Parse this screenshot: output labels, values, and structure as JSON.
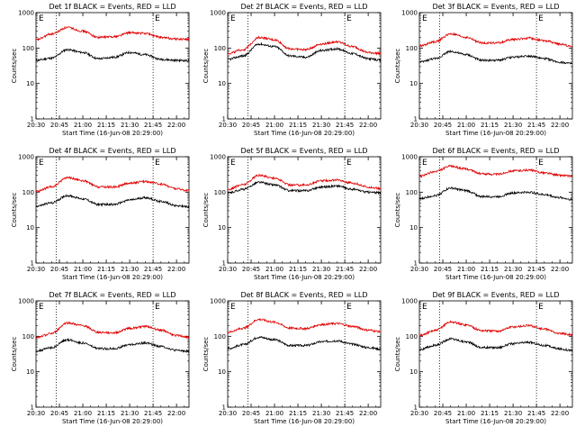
{
  "chart_data": [
    {
      "type": "line",
      "title": "Det 1f BLACK = Events, RED = LLD",
      "xlabel": "Start Time (16-Jun-08 20:29:00)",
      "ylabel": "Counts/sec",
      "yscale": "log",
      "ylim": [
        1,
        1000
      ],
      "xlim": [
        "20:30",
        "22:08"
      ],
      "xticks": [
        "20:30",
        "20:45",
        "21:00",
        "21:15",
        "21:30",
        "21:45",
        "22:00"
      ],
      "yticks": [
        "1",
        "10",
        "100",
        "1000"
      ],
      "markers": [
        "E",
        "E"
      ],
      "vlines": [
        "20:43",
        "21:45"
      ],
      "series": [
        {
          "name": "BLACK",
          "color": "#000000",
          "x": [
            "20:30",
            "20:40",
            "20:50",
            "21:00",
            "21:10",
            "21:20",
            "21:30",
            "21:40",
            "21:50",
            "22:00",
            "22:08"
          ],
          "values": [
            45,
            52,
            90,
            75,
            50,
            55,
            75,
            65,
            48,
            45,
            44
          ]
        },
        {
          "name": "RED",
          "color": "#e00000",
          "x": [
            "20:30",
            "20:40",
            "20:50",
            "21:00",
            "21:10",
            "21:20",
            "21:30",
            "21:40",
            "21:50",
            "22:00",
            "22:08"
          ],
          "values": [
            170,
            250,
            380,
            300,
            200,
            210,
            270,
            260,
            200,
            180,
            175
          ]
        }
      ]
    },
    {
      "type": "line",
      "title": "Det 2f BLACK = Events, RED = LLD",
      "xlabel": "Start Time (16-Jun-08 20:29:00)",
      "ylabel": "Counts/sec",
      "yscale": "log",
      "ylim": [
        1,
        1000
      ],
      "xlim": [
        "20:30",
        "22:08"
      ],
      "xticks": [
        "20:30",
        "20:45",
        "21:00",
        "21:15",
        "21:30",
        "21:45",
        "22:00"
      ],
      "yticks": [
        "1",
        "10",
        "100",
        "1000"
      ],
      "markers": [
        "E",
        "E"
      ],
      "vlines": [
        "20:43",
        "21:45"
      ],
      "series": [
        {
          "name": "BLACK",
          "color": "#000000",
          "x": [
            "20:30",
            "20:40",
            "20:50",
            "21:00",
            "21:10",
            "21:20",
            "21:30",
            "21:40",
            "21:50",
            "22:00",
            "22:08"
          ],
          "values": [
            48,
            60,
            130,
            110,
            60,
            55,
            85,
            95,
            70,
            50,
            45
          ]
        },
        {
          "name": "RED",
          "color": "#e00000",
          "x": [
            "20:30",
            "20:40",
            "20:50",
            "21:00",
            "21:10",
            "21:20",
            "21:30",
            "21:40",
            "21:50",
            "22:00",
            "22:08"
          ],
          "values": [
            70,
            90,
            200,
            170,
            95,
            90,
            130,
            150,
            110,
            75,
            70
          ]
        }
      ]
    },
    {
      "type": "line",
      "title": "Det 3f BLACK = Events, RED = LLD",
      "xlabel": "Start Time (16-Jun-08 20:29:00)",
      "ylabel": "Counts/sec",
      "yscale": "log",
      "ylim": [
        1,
        1000
      ],
      "xlim": [
        "20:30",
        "22:08"
      ],
      "xticks": [
        "20:30",
        "20:45",
        "21:00",
        "21:15",
        "21:30",
        "21:45",
        "22:00"
      ],
      "yticks": [
        "1",
        "10",
        "100",
        "1000"
      ],
      "markers": [
        "E",
        "E"
      ],
      "vlines": [
        "20:43",
        "21:45"
      ],
      "series": [
        {
          "name": "BLACK",
          "color": "#000000",
          "x": [
            "20:30",
            "20:40",
            "20:50",
            "21:00",
            "21:10",
            "21:20",
            "21:30",
            "21:40",
            "21:50",
            "22:00",
            "22:08"
          ],
          "values": [
            40,
            50,
            80,
            65,
            45,
            45,
            55,
            60,
            50,
            40,
            36
          ]
        },
        {
          "name": "RED",
          "color": "#e00000",
          "x": [
            "20:30",
            "20:40",
            "20:50",
            "21:00",
            "21:10",
            "21:20",
            "21:30",
            "21:40",
            "21:50",
            "22:00",
            "22:08"
          ],
          "values": [
            115,
            150,
            250,
            200,
            140,
            140,
            175,
            190,
            160,
            130,
            110
          ]
        }
      ]
    },
    {
      "type": "line",
      "title": "Det 4f BLACK = Events, RED = LLD",
      "xlabel": "Start Time (16-Jun-08 20:29:00)",
      "ylabel": "Counts/sec",
      "yscale": "log",
      "ylim": [
        1,
        1000
      ],
      "xlim": [
        "20:30",
        "22:08"
      ],
      "xticks": [
        "20:30",
        "20:45",
        "21:00",
        "21:15",
        "21:30",
        "21:45",
        "22:00"
      ],
      "yticks": [
        "1",
        "10",
        "100",
        "1000"
      ],
      "markers": [
        "E",
        "E"
      ],
      "vlines": [
        "20:43",
        "21:45"
      ],
      "series": [
        {
          "name": "BLACK",
          "color": "#000000",
          "x": [
            "20:30",
            "20:40",
            "20:50",
            "21:00",
            "21:10",
            "21:20",
            "21:30",
            "21:40",
            "21:50",
            "22:00",
            "22:08"
          ],
          "values": [
            40,
            50,
            80,
            65,
            45,
            45,
            60,
            70,
            55,
            42,
            38
          ]
        },
        {
          "name": "RED",
          "color": "#e00000",
          "x": [
            "20:30",
            "20:40",
            "20:50",
            "21:00",
            "21:10",
            "21:20",
            "21:30",
            "21:40",
            "21:50",
            "22:00",
            "22:08"
          ],
          "values": [
            105,
            140,
            260,
            210,
            140,
            140,
            180,
            200,
            170,
            125,
            110
          ]
        }
      ]
    },
    {
      "type": "line",
      "title": "Det 5f BLACK = Events, RED = LLD",
      "xlabel": "Start Time (16-Jun-08 20:29:00)",
      "ylabel": "Counts/sec",
      "yscale": "log",
      "ylim": [
        1,
        1000
      ],
      "xlim": [
        "20:30",
        "22:08"
      ],
      "xticks": [
        "20:30",
        "20:45",
        "21:00",
        "21:15",
        "21:30",
        "21:45",
        "22:00"
      ],
      "yticks": [
        "1",
        "10",
        "100",
        "1000"
      ],
      "markers": [
        "E",
        "E"
      ],
      "vlines": [
        "20:43",
        "21:45"
      ],
      "series": [
        {
          "name": "BLACK",
          "color": "#000000",
          "x": [
            "20:30",
            "20:40",
            "20:50",
            "21:00",
            "21:10",
            "21:20",
            "21:30",
            "21:40",
            "21:50",
            "22:00",
            "22:08"
          ],
          "values": [
            95,
            120,
            190,
            160,
            110,
            110,
            140,
            150,
            120,
            100,
            95
          ]
        },
        {
          "name": "RED",
          "color": "#e00000",
          "x": [
            "20:30",
            "20:40",
            "20:50",
            "21:00",
            "21:10",
            "21:20",
            "21:30",
            "21:40",
            "21:50",
            "22:00",
            "22:08"
          ],
          "values": [
            120,
            165,
            300,
            250,
            160,
            160,
            210,
            220,
            180,
            140,
            125
          ]
        }
      ]
    },
    {
      "type": "line",
      "title": "Det 6f BLACK = Events, RED = LLD",
      "xlabel": "Start Time (16-Jun-08 20:29:00)",
      "ylabel": "Counts/sec",
      "yscale": "log",
      "ylim": [
        1,
        1000
      ],
      "xlim": [
        "20:30",
        "22:08"
      ],
      "xticks": [
        "20:30",
        "20:45",
        "21:00",
        "21:15",
        "21:30",
        "21:45",
        "22:00"
      ],
      "yticks": [
        "1",
        "10",
        "100",
        "1000"
      ],
      "markers": [
        "E",
        "E"
      ],
      "vlines": [
        "20:43",
        "21:45"
      ],
      "series": [
        {
          "name": "BLACK",
          "color": "#000000",
          "x": [
            "20:30",
            "20:40",
            "20:50",
            "21:00",
            "21:10",
            "21:20",
            "21:30",
            "21:40",
            "21:50",
            "22:00",
            "22:08"
          ],
          "values": [
            65,
            80,
            130,
            110,
            75,
            75,
            95,
            100,
            85,
            70,
            62
          ]
        },
        {
          "name": "RED",
          "color": "#e00000",
          "x": [
            "20:30",
            "20:40",
            "20:50",
            "21:00",
            "21:10",
            "21:20",
            "21:30",
            "21:40",
            "21:50",
            "22:00",
            "22:08"
          ],
          "values": [
            280,
            380,
            540,
            450,
            330,
            320,
            400,
            420,
            350,
            300,
            285
          ]
        }
      ]
    },
    {
      "type": "line",
      "title": "Det 7f BLACK = Events, RED = LLD",
      "xlabel": "Start Time (16-Jun-08 20:29:00)",
      "ylabel": "Counts/sec",
      "yscale": "log",
      "ylim": [
        1,
        1000
      ],
      "xlim": [
        "20:30",
        "22:08"
      ],
      "xticks": [
        "20:30",
        "20:45",
        "21:00",
        "21:15",
        "21:30",
        "21:45",
        "22:00"
      ],
      "yticks": [
        "1",
        "10",
        "100",
        "1000"
      ],
      "markers": [
        "E",
        "E"
      ],
      "vlines": [
        "20:43",
        "21:45"
      ],
      "series": [
        {
          "name": "BLACK",
          "color": "#000000",
          "x": [
            "20:30",
            "20:40",
            "20:50",
            "21:00",
            "21:10",
            "21:20",
            "21:30",
            "21:40",
            "21:50",
            "22:00",
            "22:08"
          ],
          "values": [
            38,
            48,
            80,
            65,
            45,
            45,
            58,
            65,
            52,
            40,
            38
          ]
        },
        {
          "name": "RED",
          "color": "#e00000",
          "x": [
            "20:30",
            "20:40",
            "20:50",
            "21:00",
            "21:10",
            "21:20",
            "21:30",
            "21:40",
            "21:50",
            "22:00",
            "22:08"
          ],
          "values": [
            90,
            120,
            240,
            200,
            130,
            125,
            170,
            190,
            150,
            105,
            95
          ]
        }
      ]
    },
    {
      "type": "line",
      "title": "Det 8f BLACK = Events, RED = LLD",
      "xlabel": "Start Time (16-Jun-08 20:29:00)",
      "ylabel": "Counts/sec",
      "yscale": "log",
      "ylim": [
        1,
        1000
      ],
      "xlim": [
        "20:30",
        "22:08"
      ],
      "xticks": [
        "20:30",
        "20:45",
        "21:00",
        "21:15",
        "21:30",
        "21:45",
        "22:00"
      ],
      "yticks": [
        "1",
        "10",
        "100",
        "1000"
      ],
      "markers": [
        "E",
        "E"
      ],
      "vlines": [
        "20:43",
        "21:45"
      ],
      "series": [
        {
          "name": "BLACK",
          "color": "#000000",
          "x": [
            "20:30",
            "20:40",
            "20:50",
            "21:00",
            "21:10",
            "21:20",
            "21:30",
            "21:40",
            "21:50",
            "22:00",
            "22:08"
          ],
          "values": [
            45,
            58,
            95,
            80,
            55,
            55,
            70,
            75,
            60,
            48,
            44
          ]
        },
        {
          "name": "RED",
          "color": "#e00000",
          "x": [
            "20:30",
            "20:40",
            "20:50",
            "21:00",
            "21:10",
            "21:20",
            "21:30",
            "21:40",
            "21:50",
            "22:00",
            "22:08"
          ],
          "values": [
            130,
            170,
            300,
            250,
            170,
            165,
            215,
            230,
            190,
            150,
            135
          ]
        }
      ]
    },
    {
      "type": "line",
      "title": "Det 9f BLACK = Events, RED = LLD",
      "xlabel": "Start Time (16-Jun-08 20:29:00)",
      "ylabel": "Counts/sec",
      "yscale": "log",
      "ylim": [
        1,
        1000
      ],
      "xlim": [
        "20:30",
        "22:08"
      ],
      "xticks": [
        "20:30",
        "20:45",
        "21:00",
        "21:15",
        "21:30",
        "21:45",
        "22:00"
      ],
      "yticks": [
        "1",
        "10",
        "100",
        "1000"
      ],
      "markers": [
        "E",
        "E"
      ],
      "vlines": [
        "20:43",
        "21:45"
      ],
      "series": [
        {
          "name": "BLACK",
          "color": "#000000",
          "x": [
            "20:30",
            "20:40",
            "20:50",
            "21:00",
            "21:10",
            "21:20",
            "21:30",
            "21:40",
            "21:50",
            "22:00",
            "22:08"
          ],
          "values": [
            42,
            55,
            85,
            70,
            48,
            48,
            62,
            68,
            55,
            44,
            40
          ]
        },
        {
          "name": "RED",
          "color": "#e00000",
          "x": [
            "20:30",
            "20:40",
            "20:50",
            "21:00",
            "21:10",
            "21:20",
            "21:30",
            "21:40",
            "21:50",
            "22:00",
            "22:08"
          ],
          "values": [
            105,
            145,
            255,
            210,
            145,
            140,
            185,
            200,
            160,
            120,
            110
          ]
        }
      ]
    }
  ]
}
